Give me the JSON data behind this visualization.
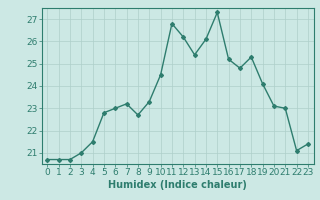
{
  "x": [
    0,
    1,
    2,
    3,
    4,
    5,
    6,
    7,
    8,
    9,
    10,
    11,
    12,
    13,
    14,
    15,
    16,
    17,
    18,
    19,
    20,
    21,
    22,
    23
  ],
  "y": [
    20.7,
    20.7,
    20.7,
    21.0,
    21.5,
    22.8,
    23.0,
    23.2,
    22.7,
    23.3,
    24.5,
    26.8,
    26.2,
    25.4,
    26.1,
    27.3,
    25.2,
    24.8,
    25.3,
    24.1,
    23.1,
    23.0,
    21.1,
    21.4
  ],
  "xlabel": "Humidex (Indice chaleur)",
  "ylim": [
    20.5,
    27.5
  ],
  "xlim": [
    -0.5,
    23.5
  ],
  "yticks": [
    21,
    22,
    23,
    24,
    25,
    26,
    27
  ],
  "xticks": [
    0,
    1,
    2,
    3,
    4,
    5,
    6,
    7,
    8,
    9,
    10,
    11,
    12,
    13,
    14,
    15,
    16,
    17,
    18,
    19,
    20,
    21,
    22,
    23
  ],
  "line_color": "#2e7d6e",
  "marker": "D",
  "marker_size": 2,
  "bg_color": "#cce8e4",
  "grid_color": "#aecfca",
  "axis_color": "#2e7d6e",
  "tick_color": "#2e7d6e",
  "xlabel_fontsize": 7,
  "tick_fontsize": 6.5,
  "line_width": 1.0
}
